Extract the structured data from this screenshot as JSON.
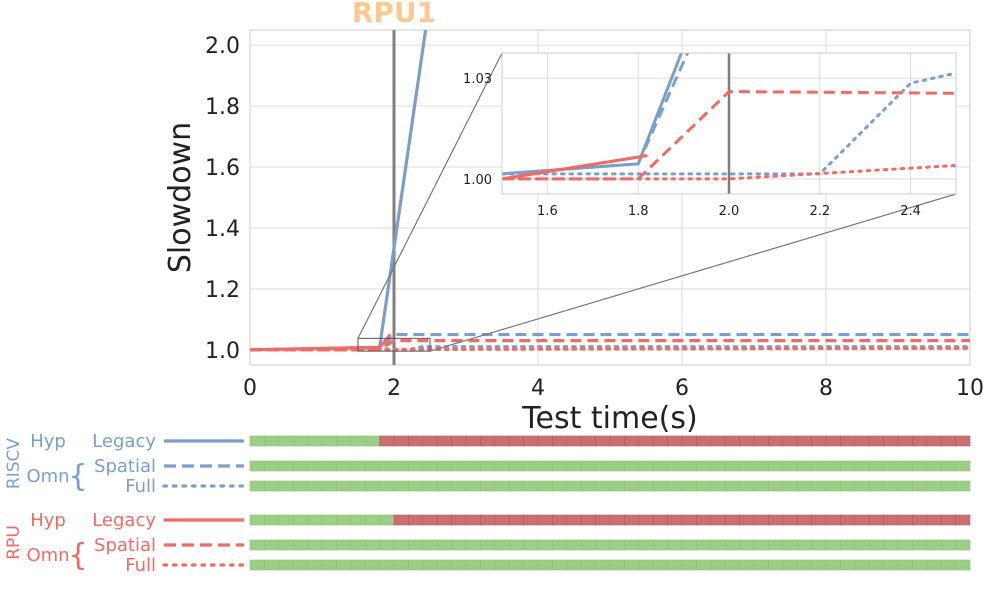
{
  "colors": {
    "riscv": "#7a9fcc",
    "rpu": "#ef6b63",
    "grid": "#dddddd",
    "event": "#7f7f7f",
    "annotation": "#fbc98f",
    "bar_ok": "#9ccf86",
    "bar_fail": "#c96f6f",
    "bar_edge": "#8fbf7a",
    "bar_fail_edge": "#b35c5c"
  },
  "chart_data": [
    {
      "type": "line",
      "name": "main",
      "annotation": "RPU1",
      "xlabel": "Test time(s)",
      "ylabel": "Slowdown",
      "xlim": [
        0,
        10
      ],
      "ylim": [
        0.95,
        2.05
      ],
      "xticks": [
        0,
        2,
        4,
        6,
        8,
        10
      ],
      "xtick_labels": [
        "0",
        "2",
        "4",
        "6",
        "8",
        "10"
      ],
      "yticks": [
        1.0,
        1.2,
        1.4,
        1.6,
        1.8,
        2.0
      ],
      "ytick_labels": [
        "1.0",
        "1.2",
        "1.4",
        "1.6",
        "1.8",
        "2.0"
      ],
      "grid": true,
      "event_x": 2.0,
      "series": [
        {
          "key": "riscv-legacy",
          "color_key": "riscv",
          "dash": "solid",
          "x": [
            0,
            1.8,
            2.5,
            10
          ],
          "y": [
            1.0,
            1.008,
            2.15,
            2.15
          ]
        },
        {
          "key": "riscv-spatial",
          "color_key": "riscv",
          "dash": "dashed",
          "x": [
            0,
            1.8,
            2.0,
            10
          ],
          "y": [
            1.0,
            1.0,
            1.05,
            1.05
          ]
        },
        {
          "key": "riscv-full",
          "color_key": "riscv",
          "dash": "dotted",
          "x": [
            0,
            2.2,
            2.4,
            10
          ],
          "y": [
            1.0,
            1.0,
            1.01,
            1.01
          ]
        },
        {
          "key": "rpu-legacy",
          "color_key": "rpu",
          "dash": "solid",
          "x": [
            0,
            1.8,
            1.95
          ],
          "y": [
            1.0,
            1.008,
            1.05
          ]
        },
        {
          "key": "rpu-spatial",
          "color_key": "rpu",
          "dash": "dashed",
          "x": [
            0,
            1.8,
            2.0,
            10
          ],
          "y": [
            1.0,
            1.0,
            1.03,
            1.03
          ]
        },
        {
          "key": "rpu-full",
          "color_key": "rpu",
          "dash": "dotted",
          "x": [
            0,
            10
          ],
          "y": [
            1.0,
            1.005
          ]
        }
      ]
    },
    {
      "type": "line",
      "name": "inset",
      "xlim": [
        1.5,
        2.5
      ],
      "ylim": [
        0.9955,
        1.0375
      ],
      "xticks": [
        1.6,
        1.8,
        2.0,
        2.2,
        2.4
      ],
      "xtick_labels": [
        "1.6",
        "1.8",
        "2.0",
        "2.2",
        "2.4"
      ],
      "yticks": [
        1.0,
        1.03
      ],
      "ytick_labels": [
        "1.00",
        "1.03"
      ],
      "grid": true,
      "event_x": 2.0,
      "series": [
        {
          "key": "riscv-legacy",
          "color_key": "riscv",
          "dash": "solid",
          "x": [
            1.5,
            1.8,
            1.96
          ],
          "y": [
            1.0015,
            1.0045,
            1.06
          ]
        },
        {
          "key": "riscv-spatial",
          "color_key": "riscv",
          "dash": "dashed",
          "x": [
            1.5,
            1.8,
            1.95
          ],
          "y": [
            1.0015,
            1.0045,
            1.05
          ]
        },
        {
          "key": "riscv-full",
          "color_key": "riscv",
          "dash": "dotted",
          "x": [
            1.5,
            2.2,
            2.4,
            2.5
          ],
          "y": [
            1.0015,
            1.0015,
            1.0285,
            1.0315
          ]
        },
        {
          "key": "rpu-legacy",
          "color_key": "rpu",
          "dash": "solid",
          "x": [
            1.5,
            1.8,
            1.82
          ],
          "y": [
            1.0,
            1.0065,
            1.007
          ]
        },
        {
          "key": "rpu-spatial",
          "color_key": "rpu",
          "dash": "dashed",
          "x": [
            1.5,
            1.8,
            2.0,
            2.5
          ],
          "y": [
            1.0,
            1.0,
            1.026,
            1.0255
          ]
        },
        {
          "key": "rpu-full",
          "color_key": "rpu",
          "dash": "dotted",
          "x": [
            1.5,
            2.0,
            2.5
          ],
          "y": [
            1.0,
            1.0,
            1.004
          ]
        }
      ]
    },
    {
      "type": "bar",
      "name": "status-timeline",
      "xlim": [
        0,
        10
      ],
      "segment_seconds": 0.2,
      "groups": [
        {
          "label": "RISCV",
          "color_key": "riscv",
          "rows": [
            {
              "key": "riscv-legacy",
              "hyp": "Hyp",
              "label": "Legacy",
              "dash": "solid",
              "fail_after": 1.8
            },
            {
              "key": "riscv-spatial",
              "omn": "Omn",
              "label": "Spatial",
              "dash": "dashed",
              "fail_after": null
            },
            {
              "key": "riscv-full",
              "label": "Full",
              "dash": "dotted",
              "fail_after": null
            }
          ]
        },
        {
          "label": "RPU",
          "color_key": "rpu",
          "rows": [
            {
              "key": "rpu-legacy",
              "hyp": "Hyp",
              "label": "Legacy",
              "dash": "solid",
              "fail_after": 2.0
            },
            {
              "key": "rpu-spatial",
              "omn": "Omn",
              "label": "Spatial",
              "dash": "dashed",
              "fail_after": null
            },
            {
              "key": "rpu-full",
              "label": "Full",
              "dash": "dotted",
              "fail_after": null
            }
          ]
        }
      ]
    }
  ]
}
